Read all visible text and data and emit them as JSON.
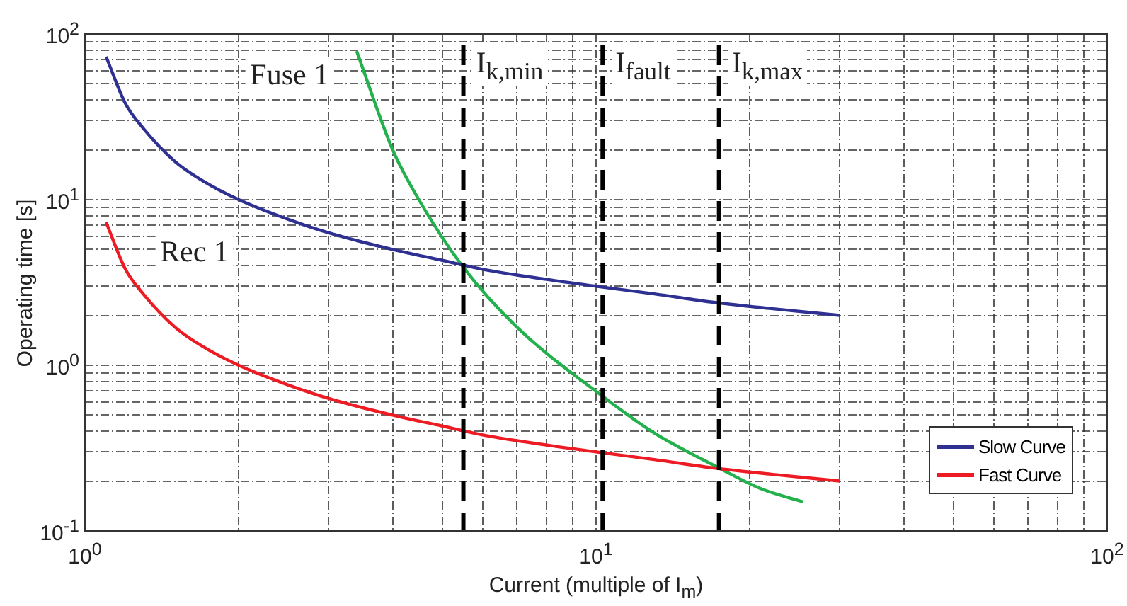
{
  "chart_data": {
    "type": "line",
    "xlabel": "Current (multiple of I$_{m}$)",
    "ylabel": "Operating time [s]",
    "log": "xy",
    "grid": true,
    "legend": "bottom right",
    "line_style": "solid",
    "xlim": [
      1,
      100
    ],
    "ylim": [
      0.1,
      100
    ],
    "xticks": [
      {
        "value": 1,
        "label": "10$^{0}$"
      },
      {
        "value": 2,
        "label": null
      },
      {
        "value": 3,
        "label": null
      },
      {
        "value": 4,
        "label": null
      },
      {
        "value": 5,
        "label": null
      },
      {
        "value": 6,
        "label": null
      },
      {
        "value": 7,
        "label": null
      },
      {
        "value": 8,
        "label": null
      },
      {
        "value": 9,
        "label": null
      },
      {
        "value": 10,
        "label": "10$^{1}$"
      },
      {
        "value": 20,
        "label": null
      },
      {
        "value": 30,
        "label": null
      },
      {
        "value": 40,
        "label": null
      },
      {
        "value": 50,
        "label": null
      },
      {
        "value": 60,
        "label": null
      },
      {
        "value": 70,
        "label": null
      },
      {
        "value": 80,
        "label": null
      },
      {
        "value": 90,
        "label": null
      },
      {
        "value": 100,
        "label": "10$^{2}$"
      }
    ],
    "yticks": [
      {
        "value": 0.1,
        "label": "10$^{-1}$"
      },
      {
        "value": 0.2,
        "label": null
      },
      {
        "value": 0.3,
        "label": null
      },
      {
        "value": 0.4,
        "label": null
      },
      {
        "value": 0.5,
        "label": null
      },
      {
        "value": 0.6,
        "label": null
      },
      {
        "value": 0.7,
        "label": null
      },
      {
        "value": 0.8,
        "label": null
      },
      {
        "value": 0.9,
        "label": null
      },
      {
        "value": 1,
        "label": "10$^{0}$"
      },
      {
        "value": 2,
        "label": null
      },
      {
        "value": 3,
        "label": null
      },
      {
        "value": 4,
        "label": null
      },
      {
        "value": 5,
        "label": null
      },
      {
        "value": 6,
        "label": null
      },
      {
        "value": 7,
        "label": null
      },
      {
        "value": 8,
        "label": null
      },
      {
        "value": 9,
        "label": null
      },
      {
        "value": 10,
        "label": "10$^{1}$"
      },
      {
        "value": 20,
        "label": null
      },
      {
        "value": 30,
        "label": null
      },
      {
        "value": 40,
        "label": null
      },
      {
        "value": 50,
        "label": null
      },
      {
        "value": 60,
        "label": null
      },
      {
        "value": 70,
        "label": null
      },
      {
        "value": 80,
        "label": null
      },
      {
        "value": 90,
        "label": null
      },
      {
        "value": 100,
        "label": "10$^{2}$"
      }
    ],
    "x": [
      1.1,
      1.2,
      1.3,
      1.5,
      1.7,
      2,
      2.5,
      3,
      4,
      5,
      6,
      8,
      10,
      13,
      17,
      22,
      30
    ],
    "series": [
      {
        "name": "Slow Curve",
        "color": "#2e3192",
        "values": [
          73,
          38,
          27,
          17,
          13,
          10,
          7.6,
          6.3,
          5.0,
          4.3,
          3.8,
          3.3,
          3.0,
          2.7,
          2.4,
          2.2,
          2.0
        ]
      },
      {
        "name": "Fast Curve",
        "color": "#ed1c24",
        "values": [
          7.3,
          3.8,
          2.7,
          1.7,
          1.3,
          1.0,
          0.76,
          0.63,
          0.5,
          0.43,
          0.38,
          0.33,
          0.3,
          0.27,
          0.24,
          0.22,
          0.2
        ]
      },
      {
        "color": "#22b14c",
        "x": [
          3.4,
          4.0,
          4.5,
          5.5,
          7,
          10.3,
          13,
          17.4,
          21,
          25.4
        ],
        "values": [
          79,
          20,
          10,
          3.9,
          1.7,
          0.65,
          0.39,
          0.24,
          0.18,
          0.15
        ]
      }
    ],
    "ref_lines": [
      {
        "axis": "x",
        "value": 5.5,
        "label": "I$_{k,min}$",
        "color": "#000000",
        "line_style": "dashed"
      },
      {
        "axis": "x",
        "value": 10.3,
        "label": "I$_{fault}$",
        "color": "#000000",
        "line_style": "dashed"
      },
      {
        "axis": "x",
        "value": 17.4,
        "label": "I$_{k,max}$",
        "color": "#000000",
        "line_style": "dashed"
      }
    ],
    "annotations": [
      "Fuse 1",
      "Rec 1"
    ]
  }
}
